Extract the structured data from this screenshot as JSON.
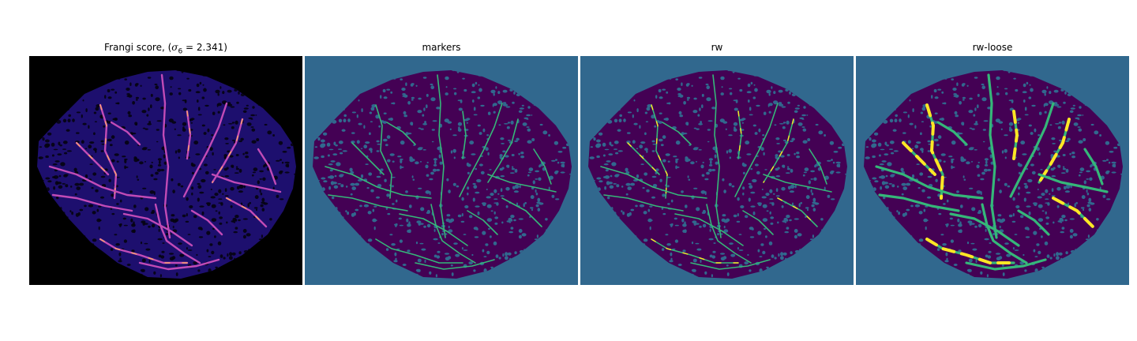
{
  "figure": {
    "panels": [
      {
        "key": "frangi",
        "title_prefix": "Frangi score, (",
        "title_sigma_symbol": "σ",
        "title_sigma_sub": "6",
        "title_sigma_value": " = 2.341)",
        "background": "#000000",
        "tissue": "#1d0f6e",
        "pores": "#05030f",
        "vessel": "#c14bb6",
        "vessel_hot": "#f9a36b"
      },
      {
        "key": "markers",
        "title": "markers",
        "background": "#31688e",
        "tissue": "#440154",
        "pores": "#31688e",
        "vessel": "#35b779",
        "vessel_hot": "#35b779"
      },
      {
        "key": "rw",
        "title": "rw",
        "background": "#31688e",
        "tissue": "#440154",
        "pores": "#31688e",
        "vessel": "#35b779",
        "vessel_hot": "#fde725"
      },
      {
        "key": "rw_loose",
        "title": "rw-loose",
        "background": "#31688e",
        "tissue": "#440154",
        "pores": "#31688e",
        "vessel": "#35b779",
        "vessel_hot": "#fde725"
      }
    ]
  }
}
